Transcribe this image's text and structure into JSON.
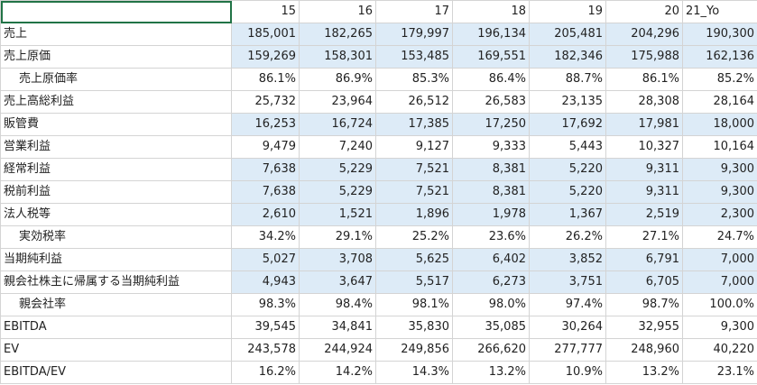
{
  "header": {
    "corner": "",
    "years": [
      "15",
      "16",
      "17",
      "18",
      "19",
      "20",
      "21_Yo"
    ]
  },
  "rows": [
    {
      "label": "売上",
      "indent": false,
      "shade": true,
      "values": [
        "185,001",
        "182,265",
        "179,997",
        "196,134",
        "205,481",
        "204,296",
        "190,300"
      ]
    },
    {
      "label": "売上原価",
      "indent": false,
      "shade": true,
      "values": [
        "159,269",
        "158,301",
        "153,485",
        "169,551",
        "182,346",
        "175,988",
        "162,136"
      ]
    },
    {
      "label": "売上原価率",
      "indent": true,
      "shade": false,
      "values": [
        "86.1%",
        "86.9%",
        "85.3%",
        "86.4%",
        "88.7%",
        "86.1%",
        "85.2%"
      ]
    },
    {
      "label": "売上高総利益",
      "indent": false,
      "shade": false,
      "values": [
        "25,732",
        "23,964",
        "26,512",
        "26,583",
        "23,135",
        "28,308",
        "28,164"
      ]
    },
    {
      "label": "販管費",
      "indent": false,
      "shade": true,
      "values": [
        "16,253",
        "16,724",
        "17,385",
        "17,250",
        "17,692",
        "17,981",
        "18,000"
      ]
    },
    {
      "label": "営業利益",
      "indent": false,
      "shade": false,
      "values": [
        "9,479",
        "7,240",
        "9,127",
        "9,333",
        "5,443",
        "10,327",
        "10,164"
      ]
    },
    {
      "label": "経常利益",
      "indent": false,
      "shade": true,
      "values": [
        "7,638",
        "5,229",
        "7,521",
        "8,381",
        "5,220",
        "9,311",
        "9,300"
      ]
    },
    {
      "label": "税前利益",
      "indent": false,
      "shade": true,
      "values": [
        "7,638",
        "5,229",
        "7,521",
        "8,381",
        "5,220",
        "9,311",
        "9,300"
      ]
    },
    {
      "label": "法人税等",
      "indent": false,
      "shade": true,
      "values": [
        "2,610",
        "1,521",
        "1,896",
        "1,978",
        "1,367",
        "2,519",
        "2,300"
      ]
    },
    {
      "label": "実効税率",
      "indent": true,
      "shade": false,
      "values": [
        "34.2%",
        "29.1%",
        "25.2%",
        "23.6%",
        "26.2%",
        "27.1%",
        "24.7%"
      ]
    },
    {
      "label": "当期純利益",
      "indent": false,
      "shade": true,
      "values": [
        "5,027",
        "3,708",
        "5,625",
        "6,402",
        "3,852",
        "6,791",
        "7,000"
      ]
    },
    {
      "label": "親会社株主に帰属する当期純利益",
      "indent": false,
      "shade": true,
      "values": [
        "4,943",
        "3,647",
        "5,517",
        "6,273",
        "3,751",
        "6,705",
        "7,000"
      ]
    },
    {
      "label": "親会社率",
      "indent": true,
      "shade": false,
      "values": [
        "98.3%",
        "98.4%",
        "98.1%",
        "98.0%",
        "97.4%",
        "98.7%",
        "100.0%"
      ]
    },
    {
      "label": "EBITDA",
      "indent": false,
      "shade": false,
      "values": [
        "39,545",
        "34,841",
        "35,830",
        "35,085",
        "30,264",
        "32,955",
        "9,300"
      ]
    },
    {
      "label": "EV",
      "indent": false,
      "shade": false,
      "values": [
        "243,578",
        "244,924",
        "249,856",
        "266,620",
        "277,777",
        "248,960",
        "40,220"
      ]
    },
    {
      "label": "EBITDA/EV",
      "indent": false,
      "shade": false,
      "values": [
        "16.2%",
        "14.2%",
        "14.3%",
        "13.2%",
        "10.9%",
        "13.2%",
        "23.1%"
      ]
    }
  ]
}
